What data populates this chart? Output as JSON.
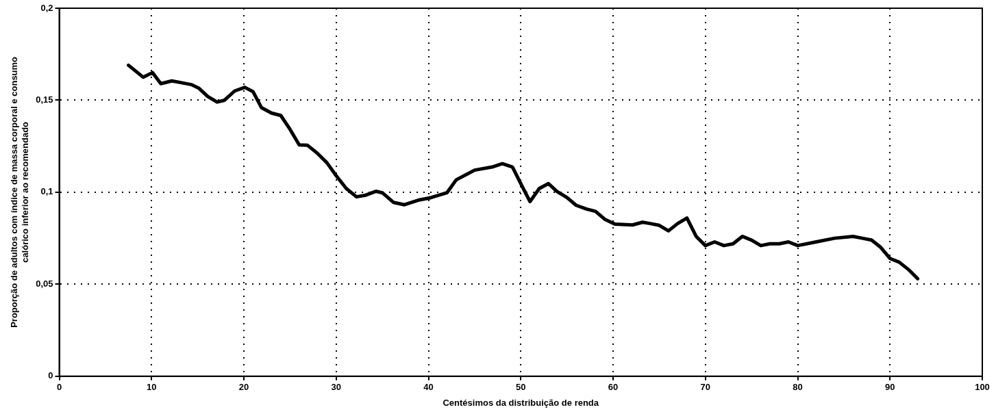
{
  "chart_data": {
    "type": "line",
    "xlabel": "Centésimos da distribuição de renda",
    "ylabel": "Proporção de adultos com índice de massa corporal e consumo calórico inferior ao recomendado",
    "x": [
      7.5,
      9.1,
      10.1,
      11,
      12.2,
      14.3,
      15.1,
      16.1,
      17.1,
      17.9,
      19,
      20.1,
      21,
      21.9,
      23,
      24,
      24.9,
      26,
      26.9,
      28,
      29,
      30,
      31.1,
      32.2,
      33.2,
      34.3,
      35,
      36.2,
      37.4,
      39,
      40.3,
      42,
      43,
      45,
      46.9,
      48,
      49.1,
      50,
      51,
      52,
      53,
      53.9,
      55,
      56,
      57.1,
      58.1,
      59.1,
      60.2,
      62.1,
      63.2,
      64,
      65,
      66,
      67,
      68,
      69,
      70,
      71,
      72,
      73,
      74,
      75,
      76,
      77,
      78,
      79,
      80,
      82,
      84,
      86,
      87,
      88,
      89,
      90,
      91,
      92,
      93
    ],
    "series": [
      {
        "color": "#000000",
        "values": [
          0.169,
          0.1625,
          0.165,
          0.159,
          0.1605,
          0.1585,
          0.1566,
          0.152,
          0.149,
          0.15,
          0.155,
          0.157,
          0.1546,
          0.146,
          0.143,
          0.1417,
          0.135,
          0.1257,
          0.1255,
          0.121,
          0.116,
          0.109,
          0.102,
          0.0975,
          0.0984,
          0.1005,
          0.0997,
          0.0945,
          0.0932,
          0.0958,
          0.0971,
          0.0997,
          0.1067,
          0.112,
          0.1137,
          0.1155,
          0.1137,
          0.1047,
          0.0949,
          0.102,
          0.1047,
          0.1005,
          0.0971,
          0.0929,
          0.0909,
          0.0896,
          0.0853,
          0.0827,
          0.0822,
          0.0837,
          0.083,
          0.082,
          0.079,
          0.083,
          0.086,
          0.076,
          0.071,
          0.073,
          0.071,
          0.072,
          0.076,
          0.074,
          0.071,
          0.072,
          0.072,
          0.073,
          0.071,
          0.073,
          0.075,
          0.076,
          0.075,
          0.074,
          0.07,
          0.064,
          0.062,
          0.058,
          0.053
        ]
      }
    ],
    "xlim": [
      0,
      100
    ],
    "xticks": [
      0,
      10,
      20,
      30,
      40,
      50,
      60,
      70,
      80,
      90,
      100
    ],
    "ylim": [
      0,
      0.2
    ],
    "yticks": [
      {
        "value": 0,
        "label": "0"
      },
      {
        "value": 0.05,
        "label": "0,05"
      },
      {
        "value": 0.1,
        "label": "0,1"
      },
      {
        "value": 0.15,
        "label": "0,15"
      },
      {
        "value": 0.2,
        "label": "0,2"
      }
    ],
    "grid": true,
    "legend": false,
    "marker": "none"
  }
}
